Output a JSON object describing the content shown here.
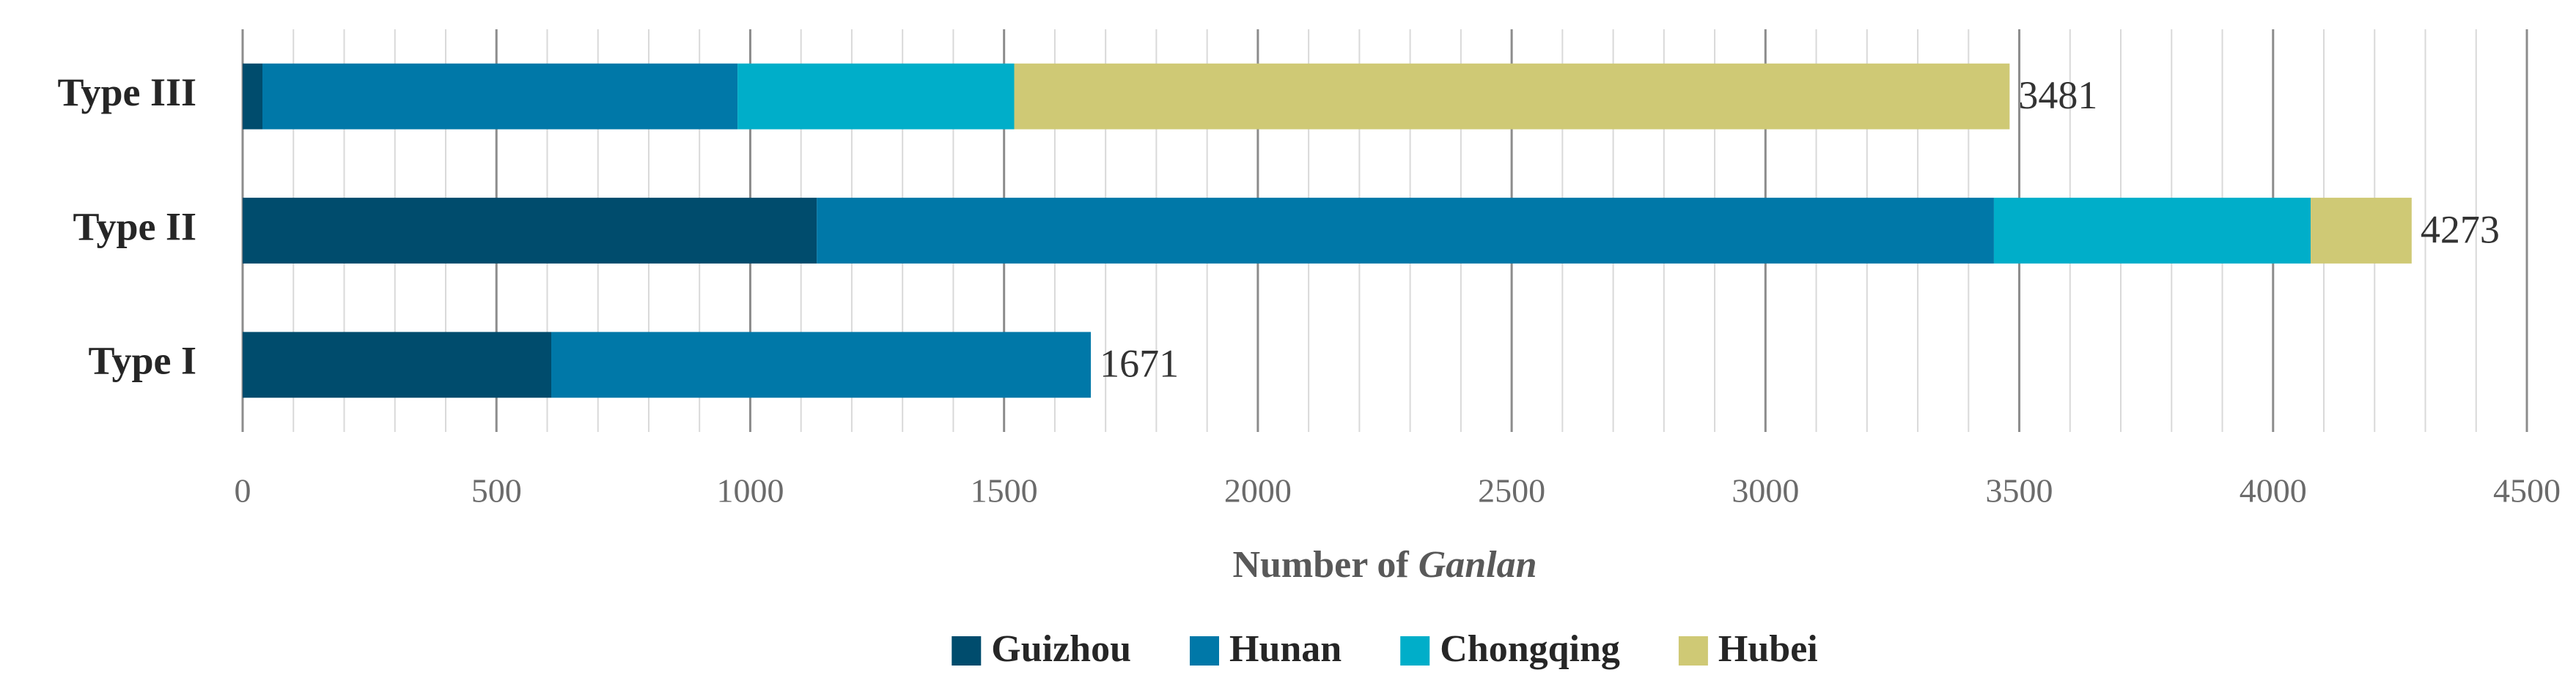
{
  "chart_data": {
    "type": "stacked-barh",
    "categories": [
      "Type I",
      "Type II",
      "Type III"
    ],
    "series": [
      {
        "name": "Guizhou",
        "color": "#004c6d",
        "values": [
          608,
          1131,
          39
        ]
      },
      {
        "name": "Hunan",
        "color": "#0078a8",
        "values": [
          1063,
          2319,
          936
        ]
      },
      {
        "name": "Chongqing",
        "color": "#00aec9",
        "values": [
          0,
          624,
          545
        ]
      },
      {
        "name": "Hubei",
        "color": "#cfc975",
        "values": [
          0,
          199,
          1961
        ]
      }
    ],
    "totals": [
      1671,
      4273,
      3481
    ],
    "xlabel": [
      "Number of ",
      "Ganlan"
    ],
    "xlim": [
      0,
      4500
    ],
    "xticks": [
      0,
      500,
      1000,
      1500,
      2000,
      2500,
      3000,
      3500,
      4000,
      4500
    ],
    "grid": true,
    "legend": "bottom"
  }
}
